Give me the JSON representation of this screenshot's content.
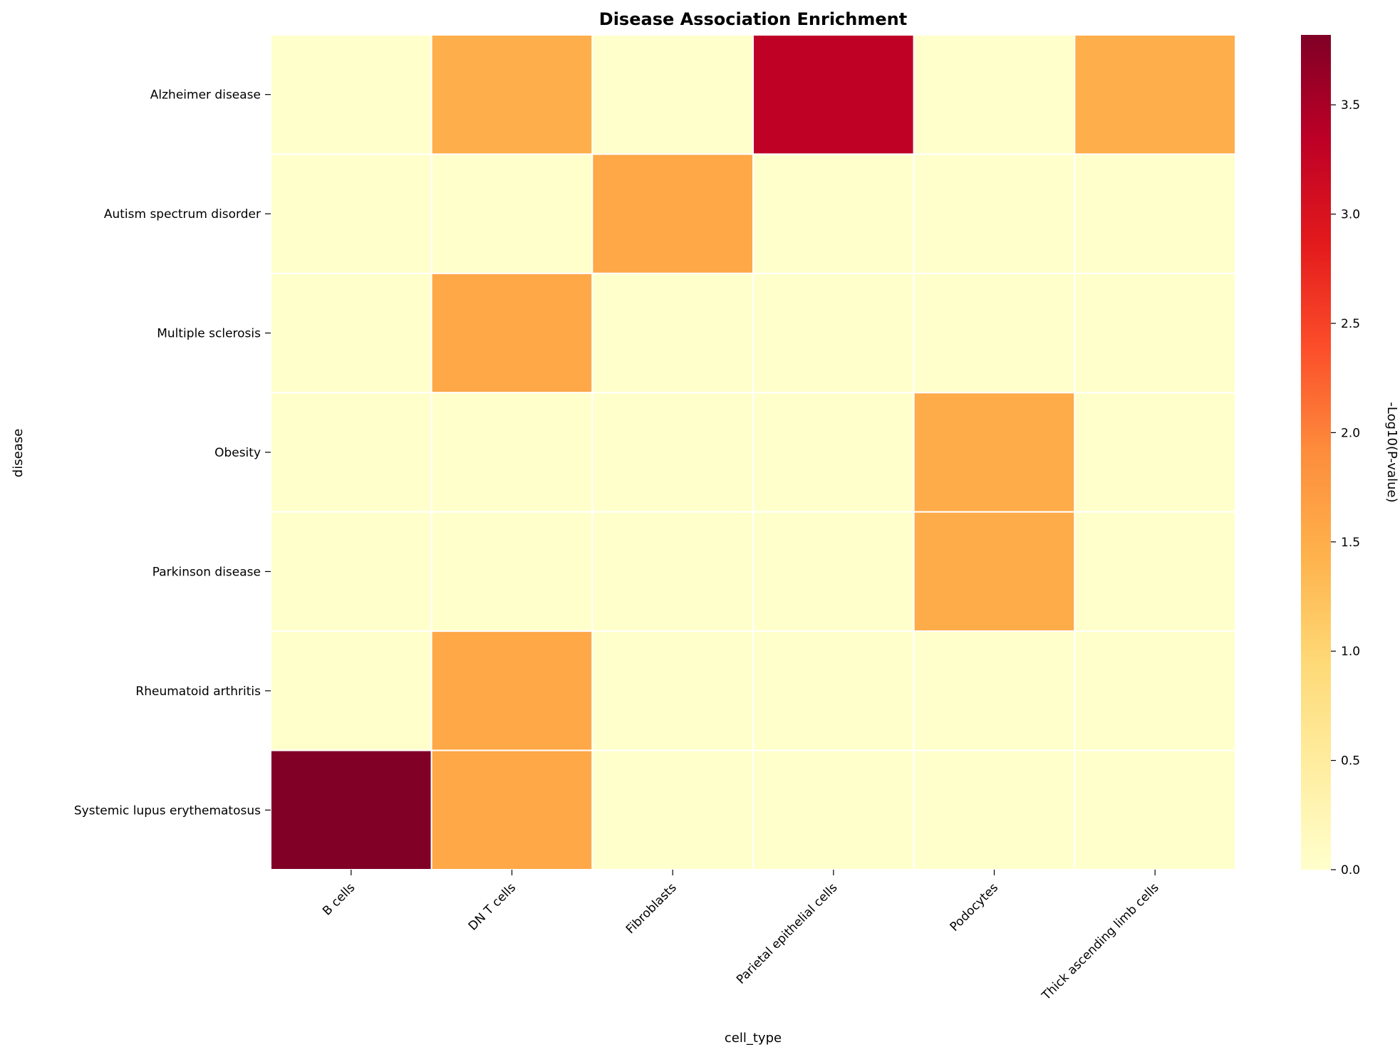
{
  "chart_data": {
    "type": "heatmap",
    "title": "Disease Association Enrichment",
    "xlabel": "cell_type",
    "ylabel": "disease",
    "x_categories": [
      "B cells",
      "DN T cells",
      "Fibroblasts",
      "Parietal epithelial cells",
      "Podocytes",
      "Thick ascending limb cells"
    ],
    "y_categories": [
      "Alzheimer disease",
      "Autism spectrum disorder",
      "Multiple sclerosis",
      "Obesity",
      "Parkinson disease",
      "Rheumatoid arthritis",
      "Systemic lupus erythematosus"
    ],
    "values": [
      [
        0.0,
        1.48,
        0.0,
        3.32,
        0.0,
        1.48
      ],
      [
        0.0,
        0.0,
        1.56,
        0.0,
        0.0,
        0.0
      ],
      [
        0.0,
        1.56,
        0.0,
        0.0,
        0.0,
        0.0
      ],
      [
        0.0,
        0.0,
        0.0,
        0.0,
        1.52,
        0.0
      ],
      [
        0.0,
        0.0,
        0.0,
        0.0,
        1.52,
        0.0
      ],
      [
        0.0,
        1.56,
        0.0,
        0.0,
        0.0,
        0.0
      ],
      [
        3.82,
        1.56,
        0.0,
        0.0,
        0.0,
        0.0
      ]
    ],
    "colorbar": {
      "label": "-Log10(P-value)",
      "range": [
        0,
        3.82
      ],
      "ticks": [
        "0.0",
        "0.5",
        "1.0",
        "1.5",
        "2.0",
        "2.5",
        "3.0",
        "3.5"
      ],
      "colormap": "YlOrRd",
      "colormap_colors": [
        "#ffffcc",
        "#ffeda0",
        "#fed976",
        "#feb24c",
        "#fd8d3c",
        "#fc4e2a",
        "#e31a1c",
        "#bd0026",
        "#800026"
      ]
    },
    "grid": false,
    "cell_separator_color": "#ffffff"
  }
}
